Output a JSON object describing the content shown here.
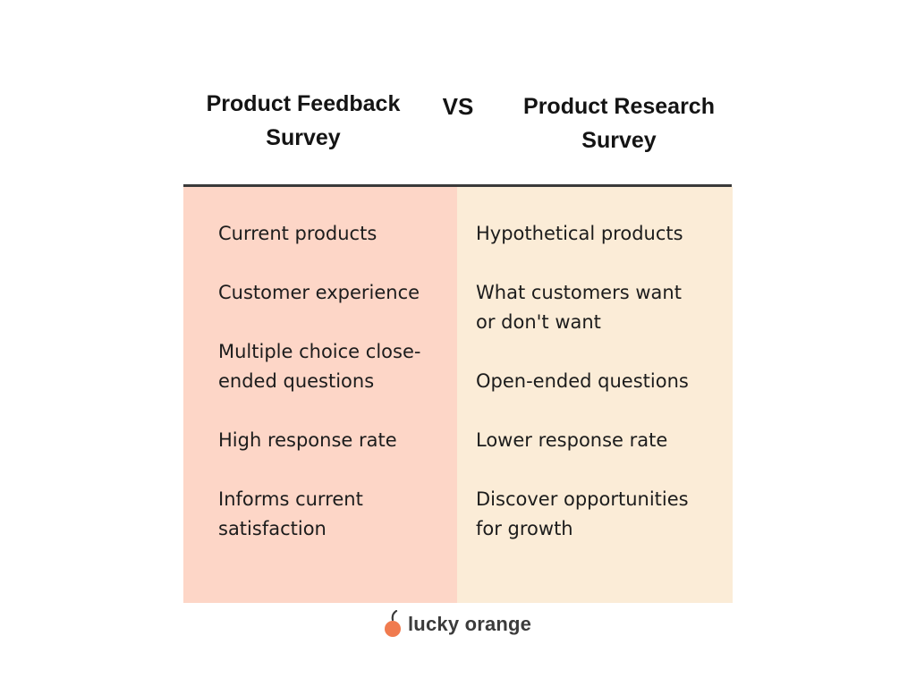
{
  "headings": {
    "left": "Product Feedback\nSurvey",
    "vs": "VS",
    "right": "Product Research\nSurvey"
  },
  "colors": {
    "left_column_bg": "#fdd6c7",
    "right_column_bg": "#fbecd7",
    "divider": "#3a3a3a",
    "logo_orange": "#f07b4f",
    "logo_leaf": "#3b3b3b"
  },
  "left_items": [
    "Current products",
    "Customer experience",
    "Multiple choice close-\nended questions",
    "High response rate",
    "Informs current\nsatisfaction"
  ],
  "right_items": [
    "Hypothetical products",
    "What customers want\nor don't want",
    "Open-ended questions",
    "Lower response rate",
    "Discover opportunities\nfor growth"
  ],
  "logo": {
    "icon": "orange-fruit-icon",
    "text": "lucky orange"
  }
}
